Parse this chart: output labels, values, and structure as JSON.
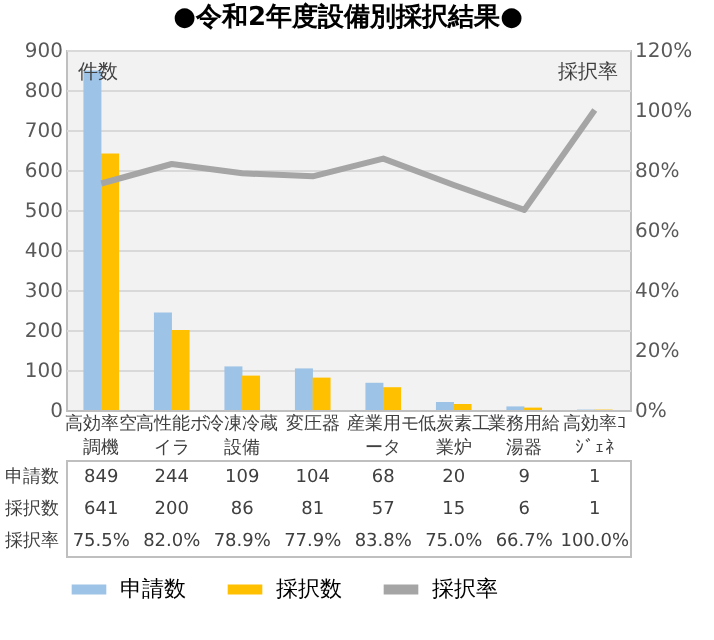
{
  "chart_data": {
    "type": "bar",
    "title": "●令和2年度設備別採択結果●",
    "categories": [
      "高効率空調機",
      "高性能ボイラ",
      "冷凍冷蔵設備",
      "変圧器",
      "産業用モータ",
      "低炭素工業炉",
      "業務用給湯器",
      "高効率ｺｼﾞｪﾈ"
    ],
    "series": [
      {
        "name": "申請数",
        "color": "#9dc3e6",
        "values": [
          849,
          244,
          109,
          104,
          68,
          20,
          9,
          1
        ],
        "value_labels": [
          "849",
          "244",
          "109",
          "104",
          "68",
          "20",
          "9",
          "1"
        ]
      },
      {
        "name": "採択数",
        "color": "#ffc000",
        "values": [
          641,
          200,
          86,
          81,
          57,
          15,
          6,
          1
        ],
        "value_labels": [
          "641",
          "200",
          "86",
          "81",
          "57",
          "15",
          "6",
          "1"
        ]
      },
      {
        "name": "採択率",
        "type": "line",
        "axis": "y2",
        "color": "#a5a5a5",
        "values": [
          75.5,
          82.0,
          78.9,
          77.9,
          83.8,
          75.0,
          66.7,
          100.0
        ],
        "value_labels": [
          "75.5%",
          "82.0%",
          "78.9%",
          "77.9%",
          "83.8%",
          "75.0%",
          "66.7%",
          "100.0%"
        ]
      }
    ],
    "ylabel": "件数",
    "y2label": "採択率",
    "ylim": [
      0,
      900
    ],
    "yticks": [
      0,
      100,
      200,
      300,
      400,
      500,
      600,
      700,
      800,
      900
    ],
    "y2lim": [
      0,
      120
    ],
    "y2ticks": [
      {
        "value": 0,
        "label": "0%"
      },
      {
        "value": 20,
        "label": "20%"
      },
      {
        "value": 40,
        "label": "40%"
      },
      {
        "value": 60,
        "label": "60%"
      },
      {
        "value": 80,
        "label": "80%"
      },
      {
        "value": 100,
        "label": "100%"
      },
      {
        "value": 120,
        "label": "120%"
      }
    ],
    "grid": "y",
    "legend": "bottom"
  }
}
